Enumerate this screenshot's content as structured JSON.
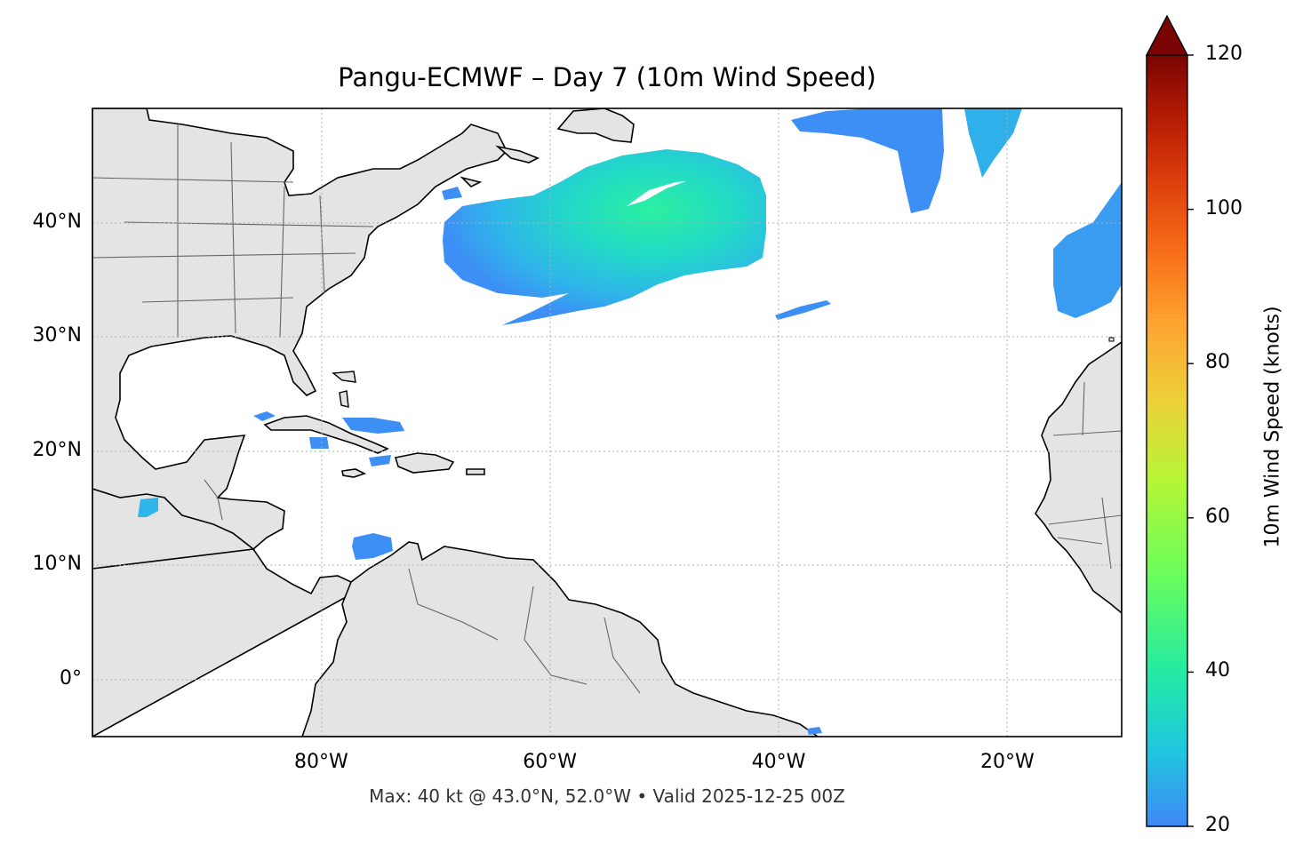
{
  "title": "Pangu-ECMWF – Day 7 (10m Wind Speed)",
  "footer": "Max: 40 kt @ 43.0°N, 52.0°W • Valid 2025-12-25 00Z",
  "map": {
    "projection": "PlateCarree",
    "lon_range": [
      -100,
      -10
    ],
    "lat_range": [
      -5,
      50
    ],
    "lat_ticks": [
      {
        "value": 40,
        "label": "40°N"
      },
      {
        "value": 30,
        "label": "30°N"
      },
      {
        "value": 20,
        "label": "20°N"
      },
      {
        "value": 10,
        "label": "10°N"
      },
      {
        "value": 0,
        "label": "0°"
      }
    ],
    "lon_ticks": [
      {
        "value": -80,
        "label": "80°W"
      },
      {
        "value": -60,
        "label": "60°W"
      },
      {
        "value": -40,
        "label": "40°W"
      },
      {
        "value": -20,
        "label": "20°W"
      }
    ],
    "land_color": "#e4e4e4",
    "ocean_color": "#ffffff",
    "gridlines": true
  },
  "colorbar": {
    "label": "10m Wind Speed (knots)",
    "min": 20,
    "max": 120,
    "extend": "max",
    "colormap": "turbo",
    "ticks": [
      {
        "value": 20,
        "label": "20"
      },
      {
        "value": 40,
        "label": "40"
      },
      {
        "value": 60,
        "label": "60"
      },
      {
        "value": 80,
        "label": "80"
      },
      {
        "value": 100,
        "label": "100"
      },
      {
        "value": 120,
        "label": "120"
      }
    ]
  },
  "colors": {
    "low_wind": "#3d8ff5",
    "mid_wind": "#22e1c2",
    "peak_wind": "#2bf0a0"
  },
  "wind_regions": [
    {
      "name": "main-cyclone",
      "max_kt": 40,
      "peak_lat": 43.0,
      "peak_lon": -52.0
    }
  ]
}
